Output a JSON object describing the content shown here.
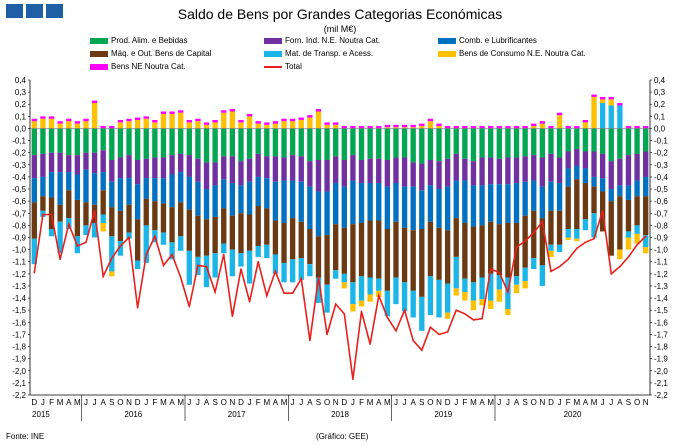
{
  "header": {
    "title": "Saldo de Bens por Grandes Categorias Económicas",
    "subtitle": "(mil M€)"
  },
  "footer": {
    "source": "Fonte: INE",
    "credit": "(Gráfico: GEE)"
  },
  "chart_data": {
    "type": "bar",
    "stacked": true,
    "ylim": [
      -2.2,
      0.4
    ],
    "ytick_step": 0.1,
    "grid": false,
    "legend_position": "top",
    "month_labels": [
      "D",
      "J",
      "F",
      "M",
      "A",
      "M",
      "J",
      "J",
      "A",
      "S",
      "O",
      "N",
      "D",
      "J",
      "F",
      "M",
      "A",
      "M",
      "J",
      "J",
      "A",
      "S",
      "O",
      "N",
      "D",
      "J",
      "F",
      "M",
      "A",
      "M",
      "J",
      "J",
      "A",
      "S",
      "O",
      "N",
      "D",
      "J",
      "F",
      "M",
      "A",
      "M",
      "J",
      "J",
      "A",
      "S",
      "O",
      "N",
      "D",
      "J",
      "F",
      "M",
      "A",
      "M",
      "J",
      "J",
      "A",
      "S",
      "O",
      "N",
      "D",
      "J",
      "F",
      "M",
      "A",
      "M",
      "J",
      "J",
      "A",
      "S",
      "O",
      "N"
    ],
    "year_labels": [
      {
        "label": "2015",
        "index": 0
      },
      {
        "label": "2016",
        "index": 6
      },
      {
        "label": "2017",
        "index": 18
      },
      {
        "label": "2018",
        "index": 30
      },
      {
        "label": "2019",
        "index": 42
      },
      {
        "label": "2020",
        "index": 54
      }
    ],
    "series": [
      {
        "name": "Prod. Alim. e Bebidas",
        "color": "#00a651",
        "line": false,
        "values": [
          -0.22,
          -0.21,
          -0.2,
          -0.2,
          -0.22,
          -0.22,
          -0.2,
          -0.2,
          -0.18,
          -0.26,
          -0.24,
          -0.22,
          -0.26,
          -0.25,
          -0.24,
          -0.24,
          -0.22,
          -0.21,
          -0.22,
          -0.25,
          -0.28,
          -0.28,
          -0.23,
          -0.23,
          -0.27,
          -0.25,
          -0.21,
          -0.23,
          -0.23,
          -0.24,
          -0.22,
          -0.23,
          -0.27,
          -0.26,
          -0.26,
          -0.23,
          -0.26,
          -0.22,
          -0.26,
          -0.25,
          -0.25,
          -0.26,
          -0.24,
          -0.24,
          -0.28,
          -0.29,
          -0.26,
          -0.27,
          -0.25,
          -0.21,
          -0.25,
          -0.27,
          -0.24,
          -0.24,
          -0.25,
          -0.24,
          -0.24,
          -0.23,
          -0.22,
          -0.24,
          -0.21,
          -0.24,
          -0.19,
          -0.17,
          -0.19,
          -0.19,
          -0.21,
          -0.27,
          -0.25,
          -0.22,
          -0.21,
          -0.19
        ]
      },
      {
        "name": "Forn. Ind. N.E. Noutra Cat.",
        "color": "#7030a0",
        "line": false,
        "values": [
          -0.19,
          -0.19,
          -0.16,
          -0.16,
          -0.14,
          -0.16,
          -0.14,
          -0.17,
          -0.18,
          -0.18,
          -0.17,
          -0.19,
          -0.2,
          -0.16,
          -0.17,
          -0.17,
          -0.16,
          -0.15,
          -0.18,
          -0.19,
          -0.22,
          -0.19,
          -0.19,
          -0.22,
          -0.2,
          -0.19,
          -0.19,
          -0.18,
          -0.21,
          -0.19,
          -0.21,
          -0.21,
          -0.21,
          -0.26,
          -0.26,
          -0.22,
          -0.22,
          -0.21,
          -0.19,
          -0.2,
          -0.2,
          -0.22,
          -0.21,
          -0.24,
          -0.2,
          -0.22,
          -0.21,
          -0.23,
          -0.23,
          -0.22,
          -0.18,
          -0.2,
          -0.23,
          -0.22,
          -0.21,
          -0.22,
          -0.21,
          -0.21,
          -0.21,
          -0.24,
          -0.23,
          -0.21,
          -0.14,
          -0.14,
          -0.14,
          -0.21,
          -0.2,
          -0.23,
          -0.22,
          -0.25,
          -0.22,
          -0.21
        ]
      },
      {
        "name": "Comb. e Lubrificantes",
        "color": "#0070c0",
        "line": false,
        "values": [
          -0.2,
          -0.16,
          -0.21,
          -0.27,
          -0.15,
          -0.21,
          -0.27,
          -0.26,
          -0.15,
          -0.21,
          -0.27,
          -0.22,
          -0.29,
          -0.17,
          -0.19,
          -0.21,
          -0.27,
          -0.25,
          -0.27,
          -0.28,
          -0.25,
          -0.26,
          -0.24,
          -0.27,
          -0.23,
          -0.27,
          -0.24,
          -0.25,
          -0.32,
          -0.35,
          -0.31,
          -0.33,
          -0.35,
          -0.37,
          -0.36,
          -0.34,
          -0.34,
          -0.36,
          -0.33,
          -0.31,
          -0.31,
          -0.35,
          -0.32,
          -0.34,
          -0.36,
          -0.32,
          -0.3,
          -0.32,
          -0.36,
          -0.31,
          -0.35,
          -0.34,
          -0.33,
          -0.31,
          -0.33,
          -0.32,
          -0.33,
          -0.28,
          -0.25,
          -0.26,
          -0.24,
          -0.23,
          -0.15,
          -0.11,
          -0.12,
          -0.08,
          -0.11,
          -0.1,
          -0.09,
          -0.12,
          -0.13,
          -0.16
        ]
      },
      {
        "name": "Máq. e Out. Bens de Capital",
        "color": "#6b3a12",
        "line": false,
        "values": [
          -0.3,
          -0.12,
          -0.26,
          -0.14,
          -0.23,
          -0.3,
          -0.19,
          -0.15,
          -0.2,
          -0.24,
          -0.25,
          -0.23,
          -0.34,
          -0.22,
          -0.24,
          -0.24,
          -0.29,
          -0.28,
          -0.34,
          -0.34,
          -0.3,
          -0.3,
          -0.29,
          -0.28,
          -0.33,
          -0.3,
          -0.33,
          -0.3,
          -0.28,
          -0.33,
          -0.34,
          -0.3,
          -0.29,
          -0.34,
          -0.41,
          -0.38,
          -0.38,
          -0.48,
          -0.44,
          -0.47,
          -0.48,
          -0.51,
          -0.46,
          -0.45,
          -0.5,
          -0.56,
          -0.45,
          -0.43,
          -0.44,
          -0.32,
          -0.46,
          -0.46,
          -0.43,
          -0.43,
          -0.42,
          -0.45,
          -0.44,
          -0.43,
          -0.39,
          -0.39,
          -0.28,
          -0.28,
          -0.35,
          -0.41,
          -0.3,
          -0.22,
          -0.33,
          -0.45,
          -0.44,
          -0.26,
          -0.24,
          -0.32
        ]
      },
      {
        "name": "Mat. de Transp. e Acess.",
        "color": "#1cb5e8",
        "line": false,
        "values": [
          -0.21,
          -0.05,
          -0.06,
          -0.26,
          -0.09,
          -0.14,
          -0.08,
          -0.12,
          -0.07,
          -0.29,
          -0.12,
          -0.05,
          -0.07,
          -0.31,
          -0.1,
          -0.1,
          -0.14,
          -0.12,
          -0.28,
          -0.15,
          -0.26,
          -0.2,
          -0.08,
          -0.22,
          -0.11,
          -0.27,
          -0.09,
          -0.11,
          -0.16,
          -0.16,
          -0.19,
          -0.18,
          -0.1,
          -0.21,
          -0.23,
          -0.07,
          -0.07,
          -0.18,
          -0.2,
          -0.14,
          -0.1,
          -0.21,
          -0.22,
          -0.24,
          -0.22,
          -0.28,
          -0.32,
          -0.31,
          -0.24,
          -0.26,
          -0.11,
          -0.15,
          -0.18,
          -0.22,
          -0.12,
          -0.26,
          -0.07,
          -0.11,
          -0.09,
          -0.17,
          -0.05,
          -0.06,
          -0.07,
          -0.08,
          -0.09,
          -0.2,
          0.21,
          0.19,
          0.19,
          -0.05,
          -0.07,
          -0.1
        ]
      },
      {
        "name": "Bens de Consumo N.E. Noutra Cat.",
        "color": "#ffc000",
        "line": false,
        "values": [
          0.06,
          0.08,
          0.08,
          0.04,
          0.06,
          0.04,
          0.06,
          0.21,
          -0.07,
          -0.04,
          0.05,
          0.06,
          0.07,
          0.08,
          0.05,
          0.12,
          0.12,
          0.13,
          0.05,
          0.06,
          0.03,
          0.05,
          0.13,
          0.14,
          0.05,
          0.1,
          0.04,
          0.03,
          0.04,
          0.06,
          0.06,
          0.07,
          0.09,
          0.14,
          0.03,
          0.03,
          -0.05,
          -0.06,
          -0.05,
          -0.06,
          -0.05,
          0.01,
          0.01,
          0.01,
          0.01,
          0.02,
          0.06,
          0.02,
          -0.05,
          -0.06,
          -0.07,
          -0.08,
          -0.05,
          -0.07,
          -0.1,
          -0.05,
          -0.07,
          -0.06,
          0.02,
          0.04,
          -0.05,
          0.11,
          -0.02,
          -0.02,
          0.05,
          0.26,
          0.03,
          0.05,
          -0.08,
          -0.1,
          -0.08,
          -0.05
        ]
      },
      {
        "name": "Bens NE Noutra Cat.",
        "color": "#ff00ff",
        "line": false,
        "values": [
          0.02,
          0.02,
          0.02,
          0.02,
          0.02,
          0.02,
          0.02,
          0.02,
          0.02,
          0.02,
          0.02,
          0.02,
          0.02,
          0.02,
          0.02,
          0.02,
          0.02,
          0.02,
          0.02,
          0.02,
          0.02,
          0.02,
          0.02,
          0.02,
          0.02,
          0.02,
          0.02,
          0.02,
          0.02,
          0.02,
          0.02,
          0.02,
          0.02,
          0.02,
          0.02,
          0.02,
          0.02,
          0.02,
          0.02,
          0.02,
          0.02,
          0.02,
          0.02,
          0.02,
          0.02,
          0.02,
          0.02,
          0.02,
          0.02,
          0.02,
          0.02,
          0.02,
          0.02,
          0.02,
          0.02,
          0.02,
          0.02,
          0.02,
          0.02,
          0.02,
          0.02,
          0.02,
          0.02,
          0.02,
          0.02,
          0.02,
          0.02,
          0.02,
          0.02,
          0.02,
          0.02,
          0.02
        ]
      },
      {
        "name": "Total",
        "color": "#e8201c",
        "line": true,
        "values": [
          -1.19,
          -0.71,
          -0.71,
          -1.08,
          -0.79,
          -0.97,
          -0.94,
          -0.68,
          -1.22,
          -1.07,
          -0.97,
          -0.9,
          -1.48,
          -1.04,
          -0.89,
          -1.13,
          -1.04,
          -1.23,
          -1.47,
          -1.13,
          -1.14,
          -1.35,
          -1.04,
          -1.55,
          -1.16,
          -1.43,
          -1.1,
          -1.38,
          -1.18,
          -1.36,
          -1.36,
          -1.24,
          -1.75,
          -1.23,
          -1.7,
          -1.45,
          -1.53,
          -2.07,
          -1.51,
          -1.78,
          -1.38,
          -1.56,
          -1.67,
          -1.5,
          -1.75,
          -1.83,
          -1.64,
          -1.7,
          -1.68,
          -1.5,
          -1.53,
          -1.58,
          -1.57,
          -1.16,
          -1.19,
          -1.35,
          -0.98,
          -0.93,
          -0.86,
          -0.77,
          -1.18,
          -1.14,
          -1.08,
          -0.99,
          -0.94,
          -0.91,
          -0.68,
          -1.2,
          -1.14,
          -1.06,
          -0.96,
          -0.89
        ]
      }
    ]
  }
}
